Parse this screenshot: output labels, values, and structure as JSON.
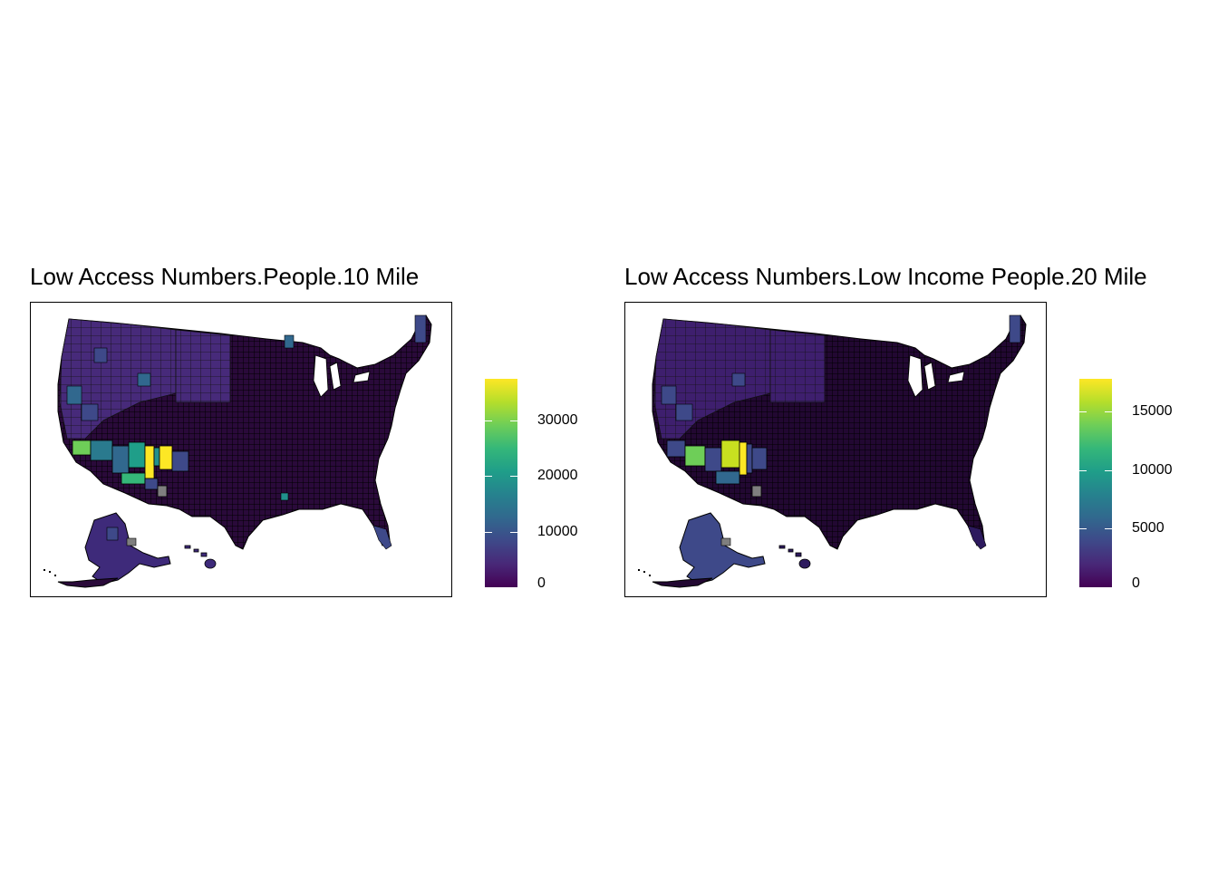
{
  "maps": [
    {
      "title": "Low Access Numbers.People.10 Mile",
      "legend": {
        "min": 0,
        "max": 37500,
        "ticks": [
          {
            "value": 0,
            "label": "0"
          },
          {
            "value": 10000,
            "label": "10000"
          },
          {
            "value": 20000,
            "label": "20000"
          },
          {
            "value": 30000,
            "label": "30000"
          }
        ]
      }
    },
    {
      "title": "Low Access Numbers.Low Income People.20 Mile",
      "legend": {
        "min": 0,
        "max": 17800,
        "ticks": [
          {
            "value": 0,
            "label": "0"
          },
          {
            "value": 5000,
            "label": "5000"
          },
          {
            "value": 10000,
            "label": "10000"
          },
          {
            "value": 15000,
            "label": "15000"
          }
        ]
      }
    }
  ],
  "colors": {
    "palette": "viridis",
    "low": "#440154",
    "high": "#fde725",
    "missing": "#7f7f7f",
    "border": "#000000"
  }
}
